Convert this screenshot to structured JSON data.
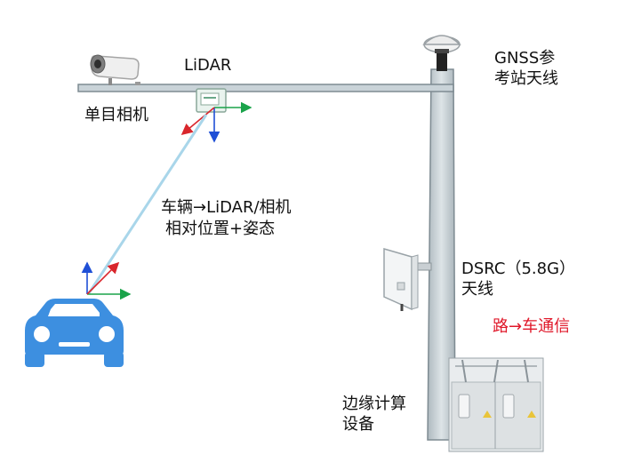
{
  "labels": {
    "lidar": "LiDAR",
    "camera": "单目相机",
    "gnss": "GNSS参\n考站天线",
    "vehicle_to_sensor_line1": "车辆→LiDAR/相机",
    "vehicle_to_sensor_line2": "相对位置+姿态",
    "dsrc": "DSRC（5.8G）\n天线",
    "v2x": "路→车通信",
    "edge_compute": "边缘计算\n设备"
  },
  "colors": {
    "pole_fill": "#c9d3d8",
    "pole_stroke": "#7e8b92",
    "car": "#3d8fe0",
    "link_line": "#a9d6ea",
    "axis_x": "#1aa34a",
    "axis_y": "#d9262c",
    "axis_z": "#1f4fd6",
    "red_text": "#e0182a"
  },
  "icons": [
    "camera-icon",
    "gnss-antenna-icon",
    "dsrc-antenna-icon",
    "edge-cabinet-icon",
    "car-icon",
    "lidar-icon"
  ]
}
